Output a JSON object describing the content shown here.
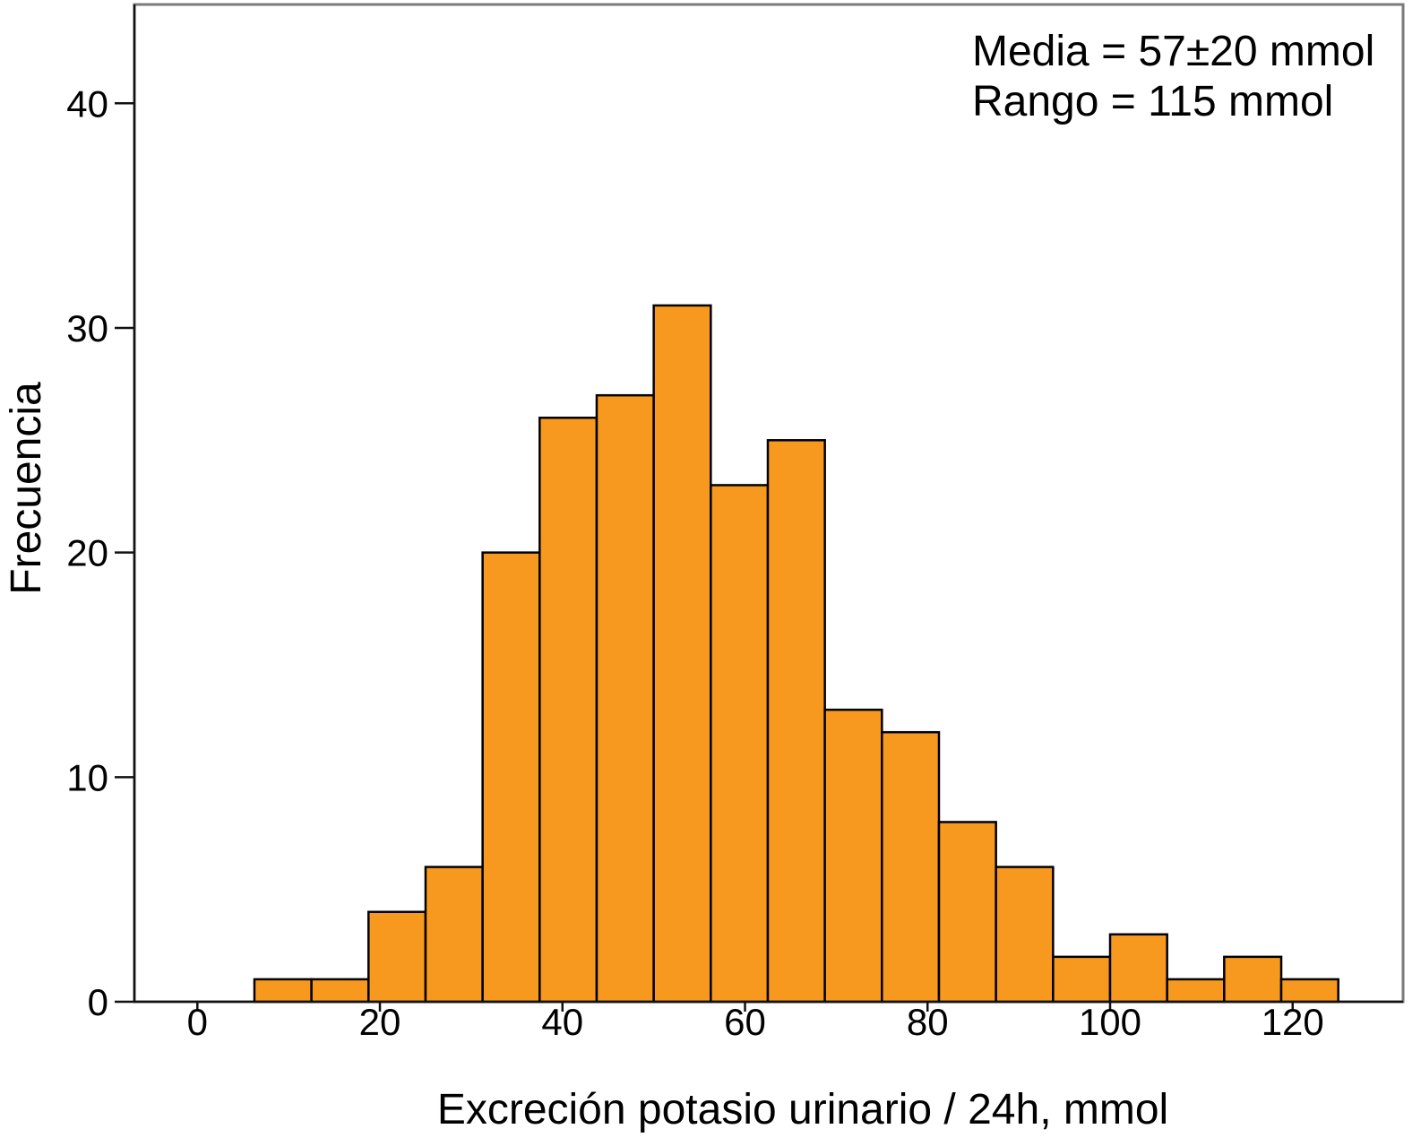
{
  "chart_data": {
    "type": "bar",
    "histogram": true,
    "xlabel": "Excreción potasio urinario / 24h, mmol",
    "ylabel": "Frecuencia",
    "xlim": [
      -6.9,
      132.1
    ],
    "ylim": [
      0,
      44.4
    ],
    "x_ticks": [
      0,
      20,
      40,
      60,
      80,
      100,
      120
    ],
    "y_ticks": [
      0,
      10,
      20,
      30,
      40
    ],
    "grid": false,
    "annotations": [
      "Media = 57±20 mmol",
      "Rango = 115 mmol"
    ],
    "bin_edges": [
      6.25,
      12.5,
      18.75,
      25,
      31.25,
      37.5,
      43.75,
      50,
      56.25,
      62.5,
      68.75,
      75,
      81.25,
      87.5,
      93.75,
      100,
      106.25,
      112.5,
      118.75,
      125
    ],
    "values": [
      1,
      1,
      4,
      6,
      20,
      26,
      27,
      31,
      23,
      25,
      13,
      12,
      8,
      6,
      2,
      3,
      1,
      2,
      1
    ],
    "colors": {
      "bar_fill": "#F7991E",
      "bar_edge": "#000000"
    }
  }
}
